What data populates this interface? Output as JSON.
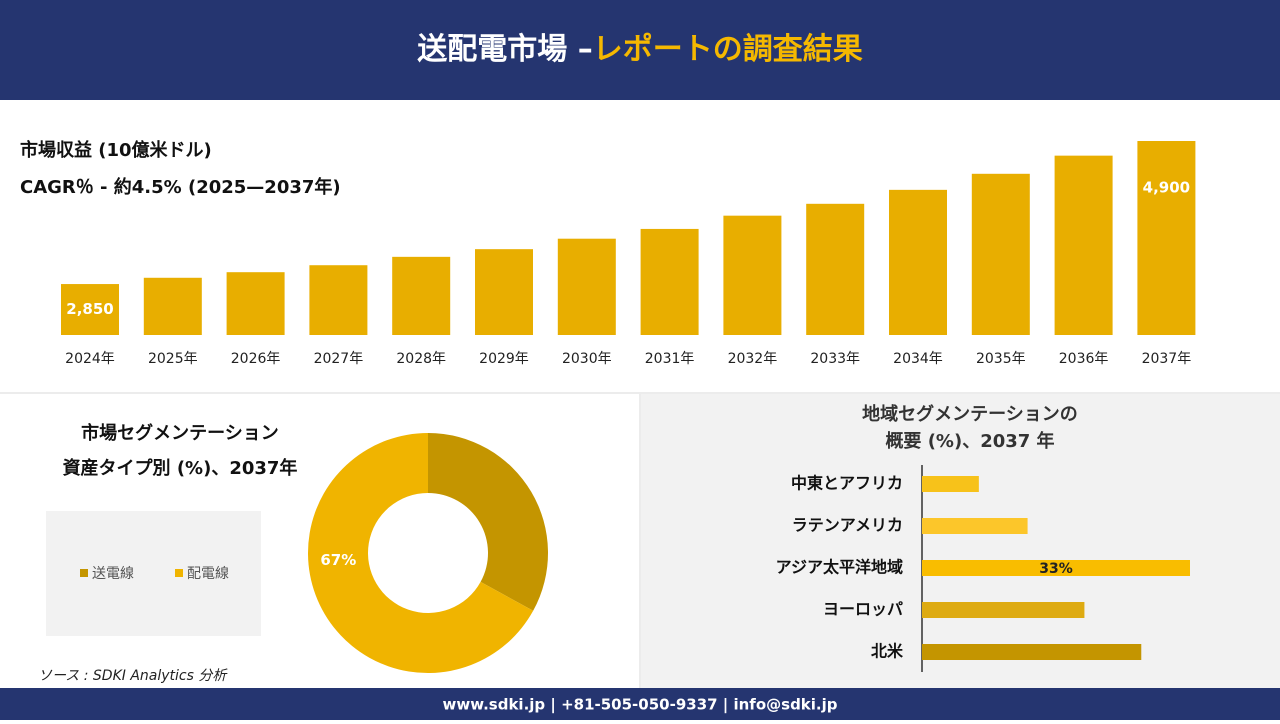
{
  "header": {
    "title": "送配電市場 –",
    "title_highlight": "レポートの調査結果"
  },
  "chart_data": [
    {
      "type": "bar",
      "title": "市場収益 (10億米ドル)",
      "subtitle": "CAGR％ - 約4.5% (2025—2037年)",
      "categories": [
        "2024年",
        "2025年",
        "2026年",
        "2027年",
        "2028年",
        "2029年",
        "2030年",
        "2031年",
        "2032年",
        "2033年",
        "2034年",
        "2035年",
        "2036年",
        "2037年"
      ],
      "values": [
        2850,
        2940,
        3020,
        3120,
        3240,
        3350,
        3500,
        3640,
        3830,
        4000,
        4200,
        4430,
        4690,
        4900
      ],
      "value_labels": [
        "2,850",
        null,
        null,
        null,
        null,
        null,
        null,
        null,
        null,
        null,
        null,
        null,
        null,
        "4,900"
      ],
      "color": "#e8ae00",
      "ylim": [
        2120,
        4900
      ]
    },
    {
      "type": "donut",
      "title": [
        "市場セグメンテーション",
        "資産タイプ別 (%)、2037年"
      ],
      "categories": [
        "送電線",
        "配電線"
      ],
      "values": [
        33,
        67
      ],
      "value_labels": [
        null,
        "67%"
      ],
      "colors": [
        "#c49500",
        "#f0b400"
      ],
      "legend": "left"
    },
    {
      "type": "hbar",
      "title": [
        "地域セグメンテーションの",
        "概要 (%)、2037 年"
      ],
      "categories": [
        "中東とアフリカ",
        "ラテンアメリカ",
        "アジア太平洋地域",
        "ヨーロッパ",
        "北米"
      ],
      "values": [
        7,
        13,
        33,
        20,
        27
      ],
      "value_labels": [
        null,
        null,
        "33%",
        null,
        null
      ],
      "colors": [
        "#f7c21a",
        "#fcc62a",
        "#f9bd00",
        "#deab12",
        "#c49500"
      ],
      "xlim": [
        0,
        33
      ]
    }
  ],
  "source": "ソース : SDKI Analytics 分析",
  "footer": "www.sdki.jp | +81-505-050-9337 | info@sdki.jp"
}
